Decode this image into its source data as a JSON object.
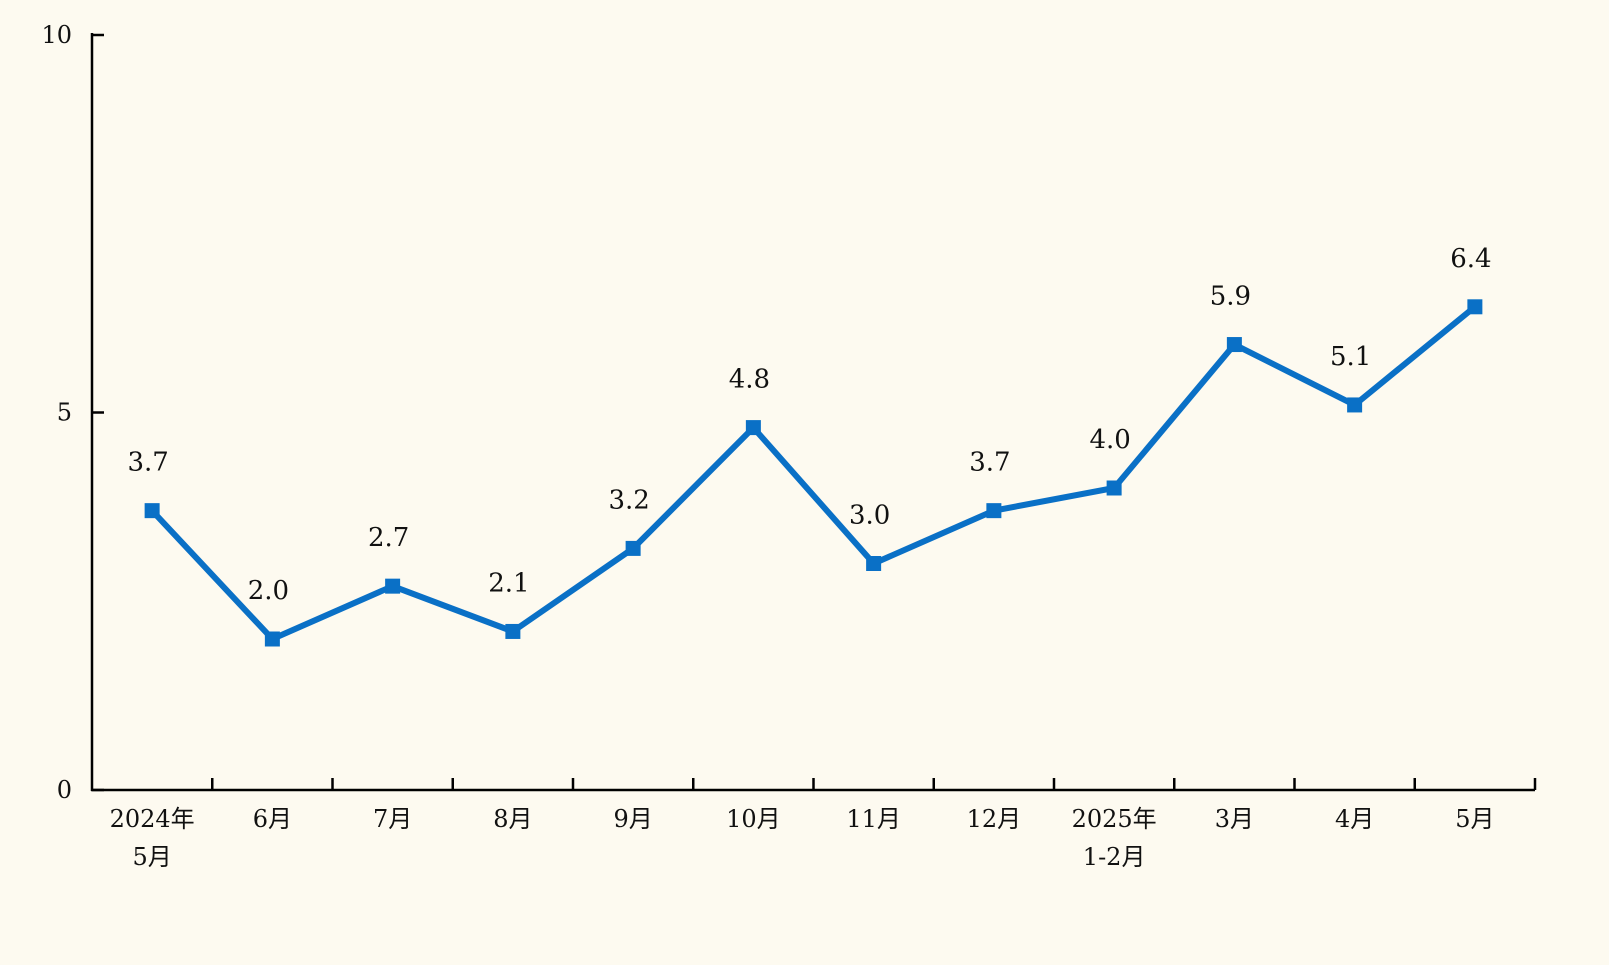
{
  "chart_data": {
    "type": "line",
    "title": "",
    "xlabel": "",
    "ylabel": "",
    "ylim": [
      0,
      10
    ],
    "yticks": [
      0,
      5,
      10
    ],
    "grid": false,
    "legend": "none",
    "categories": [
      [
        "2024年",
        "5月"
      ],
      [
        "6月"
      ],
      [
        "7月"
      ],
      [
        "8月"
      ],
      [
        "9月"
      ],
      [
        "10月"
      ],
      [
        "11月"
      ],
      [
        "12月"
      ],
      [
        "2025年",
        "1-2月"
      ],
      [
        "3月"
      ],
      [
        "4月"
      ],
      [
        "5月"
      ]
    ],
    "series": [
      {
        "name": "",
        "color": "#0a70c6",
        "marker": "square",
        "values": [
          3.7,
          2.0,
          2.7,
          2.1,
          3.2,
          4.8,
          3.0,
          3.7,
          4.0,
          5.9,
          5.1,
          6.4
        ],
        "labels": [
          "3.7",
          "2.0",
          "2.7",
          "2.1",
          "3.2",
          "4.8",
          "3.0",
          "3.7",
          "4.0",
          "5.9",
          "5.1",
          "6.4"
        ]
      }
    ]
  },
  "colors": {
    "background": "#fdfaf0",
    "axis": "#000000",
    "text": "#111111",
    "series": "#0a70c6"
  }
}
